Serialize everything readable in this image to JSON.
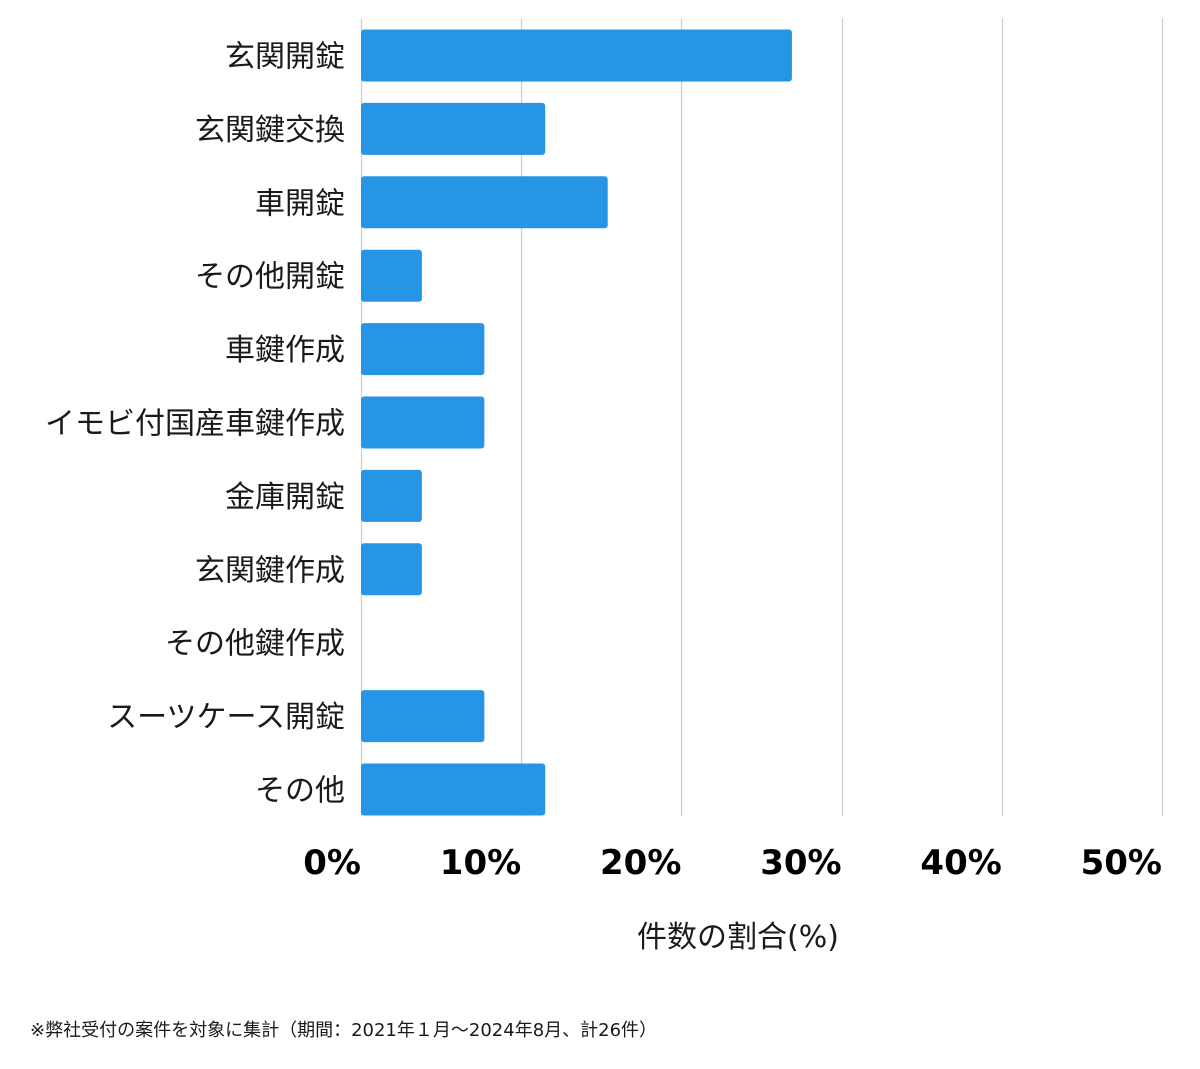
{
  "chart_data": {
    "type": "bar",
    "orientation": "horizontal",
    "categories": [
      "玄関開錠",
      "玄関鍵交換",
      "車開錠",
      "その他開錠",
      "車鍵作成",
      "イモビ付国産車鍵作成",
      "金庫開錠",
      "玄関鍵作成",
      "その他鍵作成",
      "スーツケース開錠",
      "その他"
    ],
    "values": [
      26.9,
      11.5,
      15.4,
      3.8,
      7.7,
      7.7,
      3.8,
      3.8,
      0,
      7.7,
      11.5
    ],
    "xlim": [
      0,
      50
    ],
    "ticks": [
      0,
      10,
      20,
      30,
      40,
      50
    ],
    "tick_labels": [
      "0%",
      "10%",
      "20%",
      "30%",
      "40%",
      "50%"
    ],
    "xlabel": "件数の割合(%)",
    "ylabel": "",
    "title": "",
    "grid": true,
    "bar_color": "#2795e6",
    "grid_color": "#cccccc"
  },
  "footnote": "※弊社受付の案件を対象に集計（期間：2021年１月〜2024年8月、計26件）"
}
